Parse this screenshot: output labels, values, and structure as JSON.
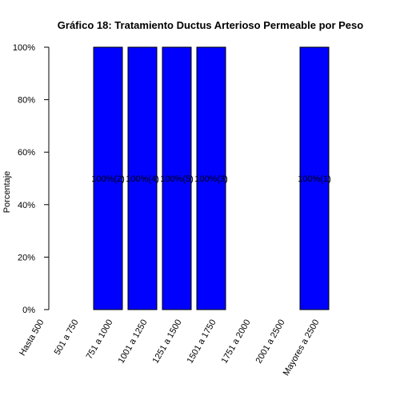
{
  "chart_data": {
    "type": "bar",
    "title": "Gráfico 18: Tratamiento Ductus Arterioso Permeable por Peso",
    "xlabel": "",
    "ylabel": "Porcentaje",
    "ylim": [
      0,
      100
    ],
    "yticks": [
      "0%",
      "20%",
      "40%",
      "60%",
      "80%",
      "100%"
    ],
    "ytick_values": [
      0,
      20,
      40,
      60,
      80,
      100
    ],
    "categories": [
      "Hasta 500",
      "501 a 750",
      "751 a 1000",
      "1001 a 1250",
      "1251 a 1500",
      "1501 a 1750",
      "1751 a 2000",
      "2001 a 2500",
      "Mayores a 2500"
    ],
    "values": [
      0,
      0,
      100,
      100,
      100,
      100,
      0,
      0,
      100
    ],
    "data_labels": [
      "",
      "",
      "100%(2)",
      "100%(4)",
      "100%(5)",
      "100%(3)",
      "",
      "",
      "100%(1)"
    ],
    "bar_color": "#0000ff",
    "grid": false,
    "legend": "none"
  }
}
